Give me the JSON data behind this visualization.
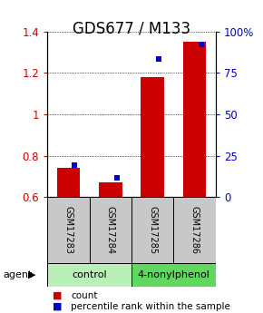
{
  "title": "GDS677 / M133",
  "samples": [
    "GSM17283",
    "GSM17284",
    "GSM17285",
    "GSM17286"
  ],
  "red_values": [
    0.74,
    0.67,
    1.18,
    1.35
  ],
  "blue_values": [
    0.755,
    0.695,
    1.265,
    1.335
  ],
  "ylim_left": [
    0.6,
    1.4
  ],
  "ylim_right": [
    0,
    100
  ],
  "yticks_left": [
    0.6,
    0.8,
    1.0,
    1.2,
    1.4
  ],
  "ytick_labels_left": [
    "0.6",
    "0.8",
    "1",
    "1.2",
    "1.4"
  ],
  "yticks_right": [
    0,
    25,
    50,
    75,
    100
  ],
  "ytick_labels_right": [
    "0",
    "25",
    "50",
    "75",
    "100%"
  ],
  "groups": [
    {
      "label": "control",
      "samples": [
        0,
        1
      ],
      "color": "#b8f0b8"
    },
    {
      "label": "4-nonylphenol",
      "samples": [
        2,
        3
      ],
      "color": "#60d860"
    }
  ],
  "bar_width": 0.55,
  "red_color": "#cc0000",
  "blue_color": "#0000cc",
  "grid_color": "#000000",
  "legend_red": "count",
  "legend_blue": "percentile rank within the sample",
  "bg_color": "#ffffff",
  "sample_box_color": "#c8c8c8",
  "title_fontsize": 12,
  "tick_fontsize": 8.5,
  "legend_fontsize": 7.5
}
